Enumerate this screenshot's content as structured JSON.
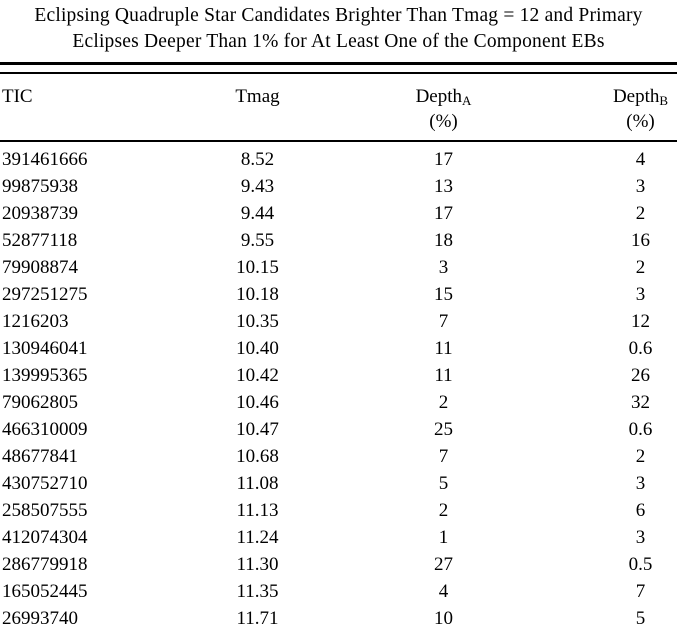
{
  "table": {
    "title": {
      "line1": "Eclipsing Quadruple Star Candidates Brighter Than Tmag = 12 and Primary",
      "line2": "Eclipses Deeper Than 1% for At Least One of the Component EBs"
    },
    "columns": [
      {
        "key": "tic",
        "label": "TIC",
        "subscript": "",
        "unit": ""
      },
      {
        "key": "tmag",
        "label": "Tmag",
        "subscript": "",
        "unit": ""
      },
      {
        "key": "depth_a",
        "label": "Depth",
        "subscript": "A",
        "unit": "(%)"
      },
      {
        "key": "depth_b",
        "label": "Depth",
        "subscript": "B",
        "unit": "(%)"
      }
    ],
    "rows": [
      [
        "391461666",
        "8.52",
        "17",
        "4"
      ],
      [
        "99875938",
        "9.43",
        "13",
        "3"
      ],
      [
        "20938739",
        "9.44",
        "17",
        "2"
      ],
      [
        "52877118",
        "9.55",
        "18",
        "16"
      ],
      [
        "79908874",
        "10.15",
        "3",
        "2"
      ],
      [
        "297251275",
        "10.18",
        "15",
        "3"
      ],
      [
        "1216203",
        "10.35",
        "7",
        "12"
      ],
      [
        "130946041",
        "10.40",
        "11",
        "0.6"
      ],
      [
        "139995365",
        "10.42",
        "11",
        "26"
      ],
      [
        "79062805",
        "10.46",
        "2",
        "32"
      ],
      [
        "466310009",
        "10.47",
        "25",
        "0.6"
      ],
      [
        "48677841",
        "10.68",
        "7",
        "2"
      ],
      [
        "430752710",
        "11.08",
        "5",
        "3"
      ],
      [
        "258507555",
        "11.13",
        "2",
        "6"
      ],
      [
        "412074304",
        "11.24",
        "1",
        "3"
      ],
      [
        "286779918",
        "11.30",
        "27",
        "0.5"
      ],
      [
        "165052445",
        "11.35",
        "4",
        "7"
      ],
      [
        "26993740",
        "11.71",
        "10",
        "5"
      ]
    ]
  }
}
